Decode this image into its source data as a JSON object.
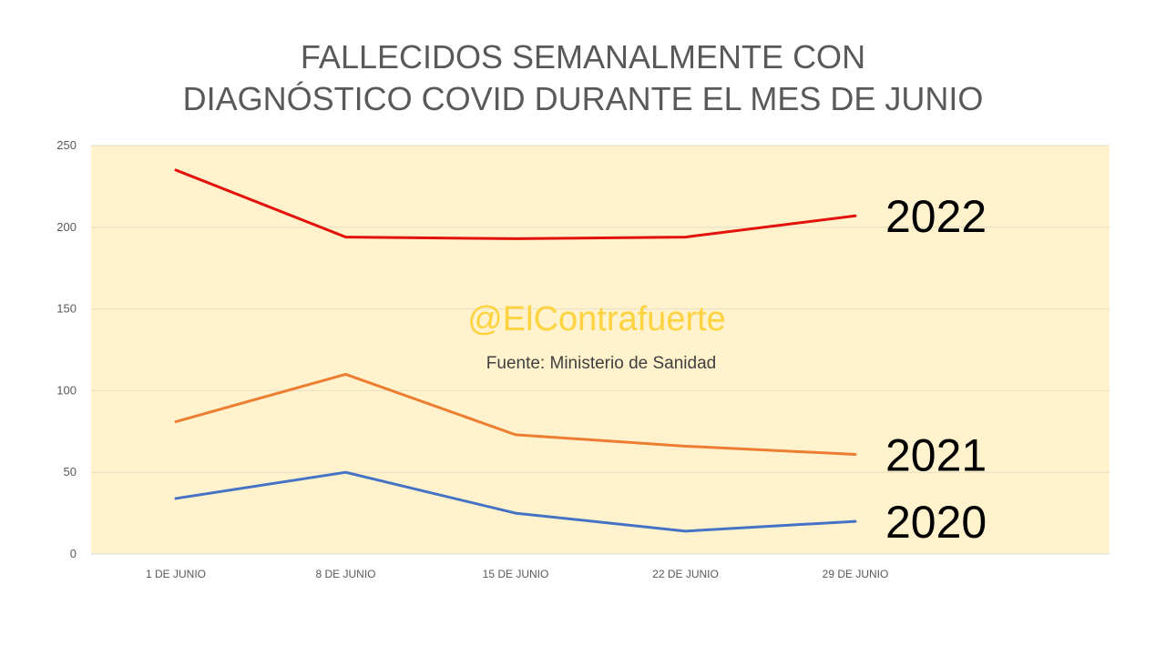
{
  "chart_data": {
    "type": "line",
    "title_line1": "FALLECIDOS SEMANALMENTE CON",
    "title_line2": "DIAGNÓSTICO COVID DURANTE EL MES DE JUNIO",
    "categories": [
      "1 DE JUNIO",
      "8 DE JUNIO",
      "15 DE JUNIO",
      "22 DE JUNIO",
      "29 DE JUNIO"
    ],
    "yticks": [
      0,
      50,
      100,
      150,
      200,
      250
    ],
    "ylim": [
      0,
      250
    ],
    "grid": true,
    "plot_background": "#FFF2CC",
    "series": [
      {
        "name": "2022",
        "color": "#E3120B",
        "values": [
          235,
          194,
          193,
          194,
          207
        ]
      },
      {
        "name": "2021",
        "color": "#ED7D31",
        "values": [
          81,
          110,
          73,
          66,
          61
        ]
      },
      {
        "name": "2020",
        "color": "#4472C4",
        "values": [
          34,
          50,
          25,
          14,
          20
        ]
      }
    ],
    "annotations": {
      "watermark": "@ElContrafuerte",
      "watermark_color": "#FFD23F",
      "source": "Fuente: Ministerio de Sanidad"
    }
  }
}
